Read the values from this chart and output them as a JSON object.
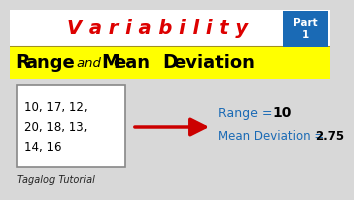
{
  "bg_color": "#d8d8d8",
  "top_bar_color": "#ffffff",
  "title_text": "V a r i a b i l i t y",
  "title_color": "#dd0000",
  "part_box_color": "#1a6ab5",
  "part_text": "Part\n1",
  "banner_color": "#ffff00",
  "banner_border_color": "#b8a000",
  "data_box_color": "#ffffff",
  "data_text_line1": "10, 17, 12,",
  "data_text_line2": "20, 18, 13,",
  "data_text_line3": "14, 16",
  "arrow_color": "#cc0000",
  "result_color": "#1a6ab5",
  "footer_text": "Tagalog Tutorial",
  "footer_color": "#222222",
  "range_label": "Range =  ",
  "range_val": "10",
  "md_label": "Mean Deviation = ",
  "md_val": "2.75"
}
